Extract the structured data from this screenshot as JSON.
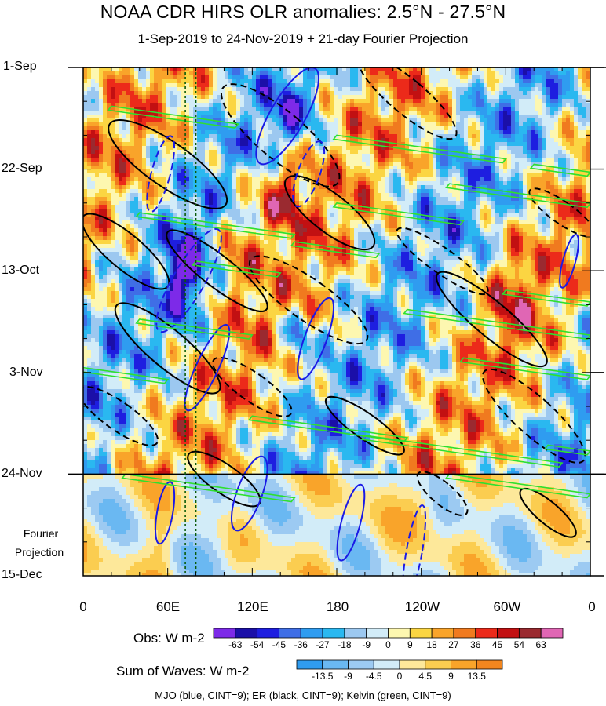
{
  "chart_data": {
    "type": "heatmap",
    "title": "NOAA CDR HIRS OLR anomalies: 2.5°N - 27.5°N",
    "subtitle": "1-Sep-2019 to 24-Nov-2019 + 21-day Fourier Projection",
    "y_axis": {
      "labels": [
        "1-Sep",
        "22-Sep",
        "13-Oct",
        "3-Nov",
        "24-Nov",
        "15-Dec"
      ],
      "range": [
        "1-Sep-2019",
        "15-Dec-2019"
      ],
      "direction": "downward"
    },
    "x_axis": {
      "labels": [
        "0",
        "60E",
        "120E",
        "180",
        "120W",
        "60W",
        "0"
      ],
      "range": [
        0,
        360
      ],
      "unit": "longitude"
    },
    "fourier_projection_label": [
      "Fourier",
      "Projection"
    ],
    "projection_start": "24-Nov",
    "reference_longitudes": [
      72.5,
      80
    ],
    "obs_colorbar": {
      "title": "Obs: W m-2",
      "levels": [
        -63,
        -54,
        -45,
        -36,
        -27,
        -18,
        -9,
        0,
        9,
        18,
        27,
        36,
        45,
        54,
        63
      ],
      "colors": [
        "#7d2ae8",
        "#1b0fa8",
        "#1e1ee0",
        "#3f6ee6",
        "#2f9cf0",
        "#2ab8f0",
        "#9cc8f0",
        "#d2ecf8",
        "#fdf7b0",
        "#fbd542",
        "#f9a42a",
        "#f07a1f",
        "#ec2a1a",
        "#c21012",
        "#9a2a30",
        "#e066b4"
      ]
    },
    "waves_colorbar": {
      "title": "Sum of Waves: W m-2",
      "levels": [
        -13.5,
        -9,
        -4.5,
        0,
        4.5,
        9,
        13.5
      ],
      "colors": [
        "#2f9cf0",
        "#6ab8f2",
        "#9ccaf2",
        "#d2ecf8",
        "#fde89a",
        "#fbcd50",
        "#f9a42a",
        "#f2861f"
      ]
    },
    "contour_legend": "MJO (blue, CINT=9); ER (black, CINT=9); Kelvin (green, CINT=9)",
    "contour_colors": {
      "mjo": "#1a1ae6",
      "er": "#000000",
      "kelvin": "#2ee02e"
    },
    "grid": false
  }
}
